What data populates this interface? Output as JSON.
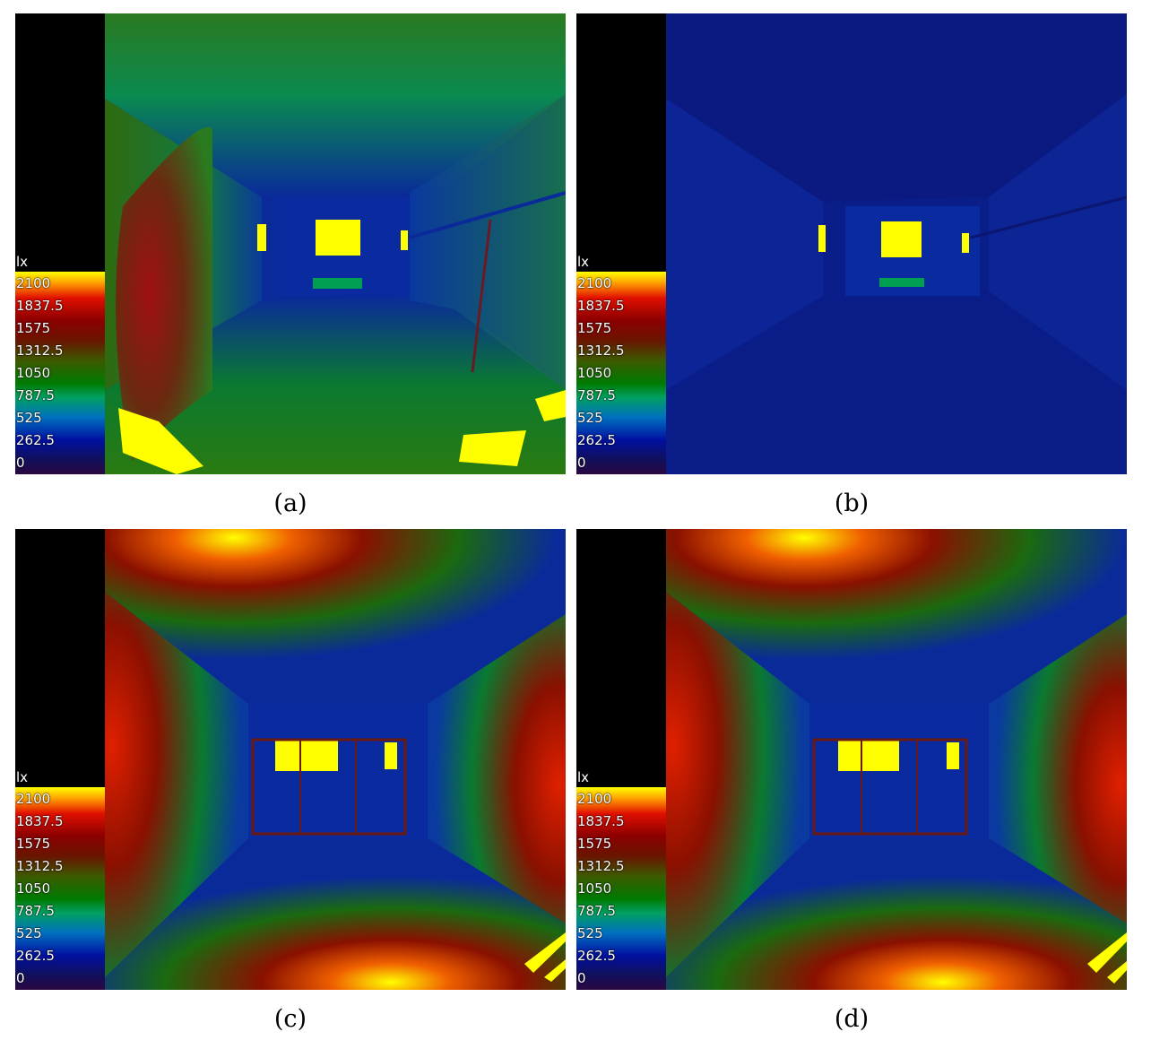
{
  "legend": {
    "unit": "lx",
    "ticks": [
      "2100",
      "1837.5",
      "1575",
      "1312.5",
      "1050",
      "787.5",
      "525",
      "262.5",
      "0"
    ]
  },
  "panels": [
    {
      "caption": "(a)"
    },
    {
      "caption": "(b)"
    },
    {
      "caption": "(c)"
    },
    {
      "caption": "(d)"
    }
  ]
}
